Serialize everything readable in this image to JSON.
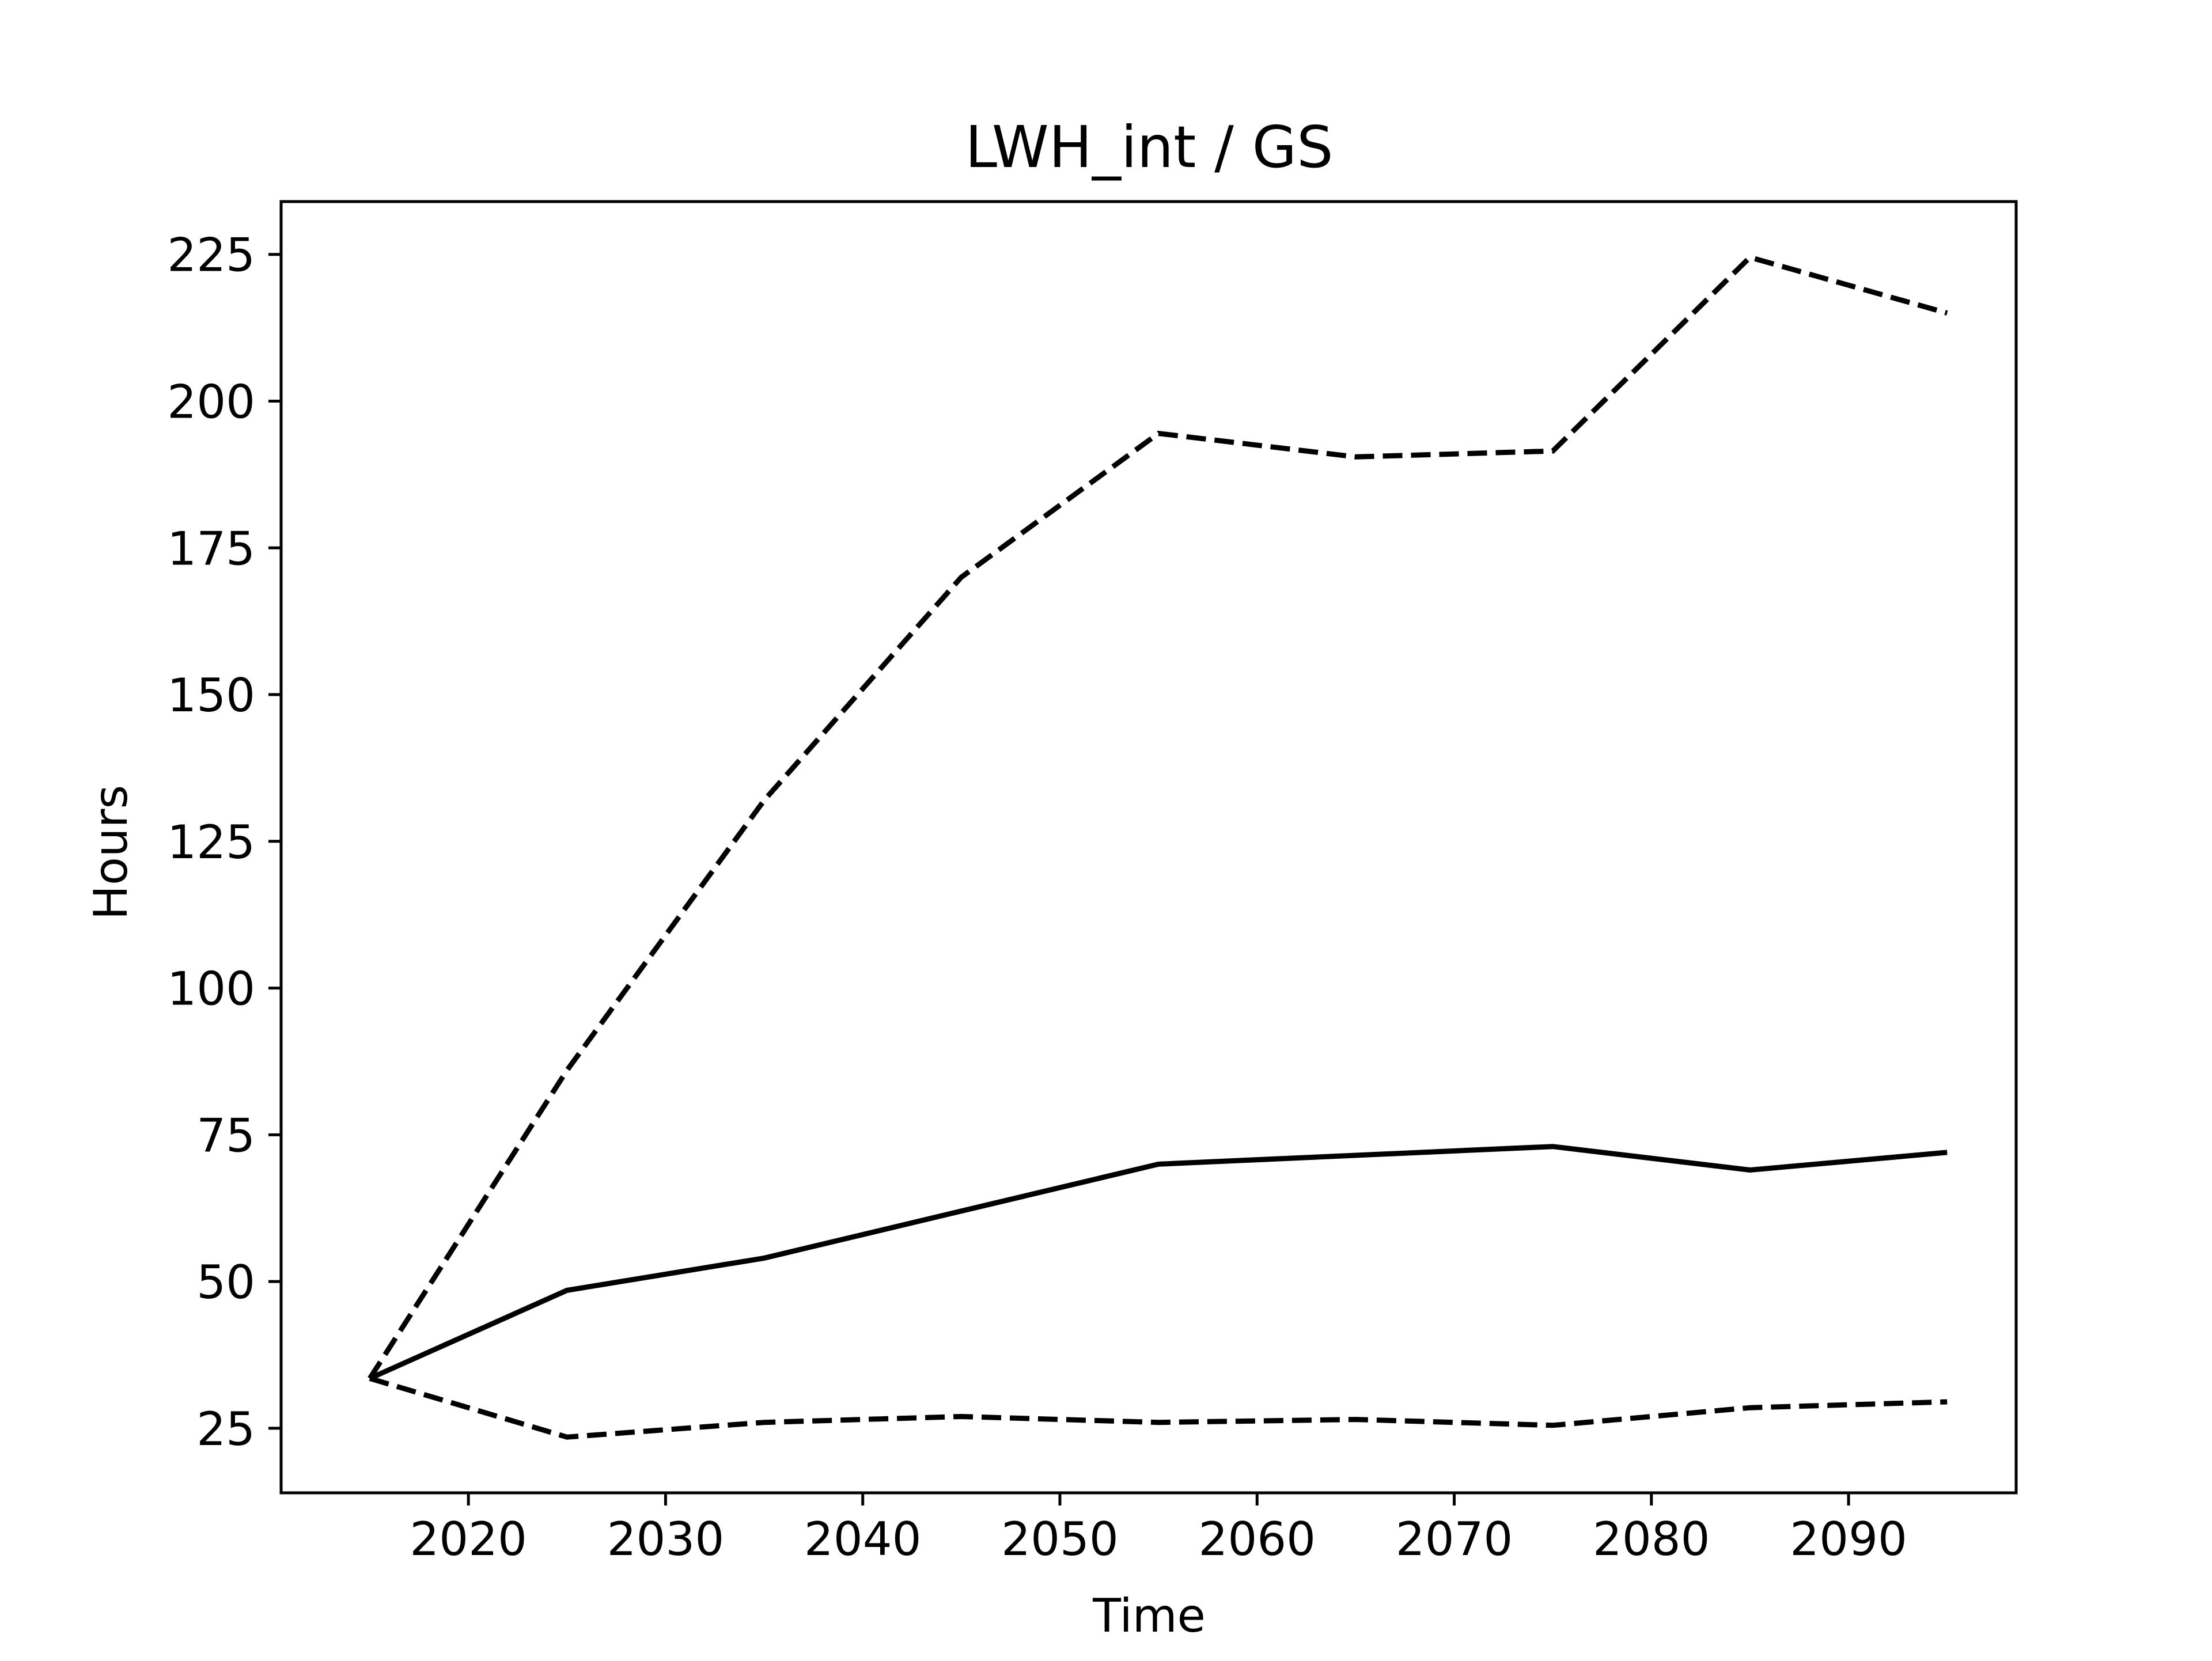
{
  "chart_data": {
    "type": "line",
    "title": "LWH_int / GS",
    "xlabel": "Time",
    "ylabel": "Hours",
    "xlim": [
      2010.5,
      2098.5
    ],
    "ylim": [
      14,
      234
    ],
    "x_ticks": [
      2020,
      2030,
      2040,
      2050,
      2060,
      2070,
      2080,
      2090
    ],
    "y_ticks": [
      25,
      50,
      75,
      100,
      125,
      150,
      175,
      200,
      225
    ],
    "grid": false,
    "legend": "none",
    "x": [
      2015,
      2025,
      2035,
      2045,
      2055,
      2065,
      2075,
      2085,
      2095
    ],
    "series": [
      {
        "style": "solid",
        "color": "#000000",
        "values": [
          33.5,
          48.5,
          54,
          62,
          70,
          71.5,
          73,
          69,
          72
        ]
      },
      {
        "style": "dashed",
        "color": "#000000",
        "values": [
          33.5,
          86,
          132,
          170,
          194.5,
          190.5,
          191.5,
          224.5,
          215
        ]
      },
      {
        "style": "dashed",
        "color": "#000000",
        "values": [
          33.5,
          23.5,
          26,
          27,
          26,
          26.5,
          25.5,
          28.5,
          29.5
        ]
      }
    ]
  }
}
